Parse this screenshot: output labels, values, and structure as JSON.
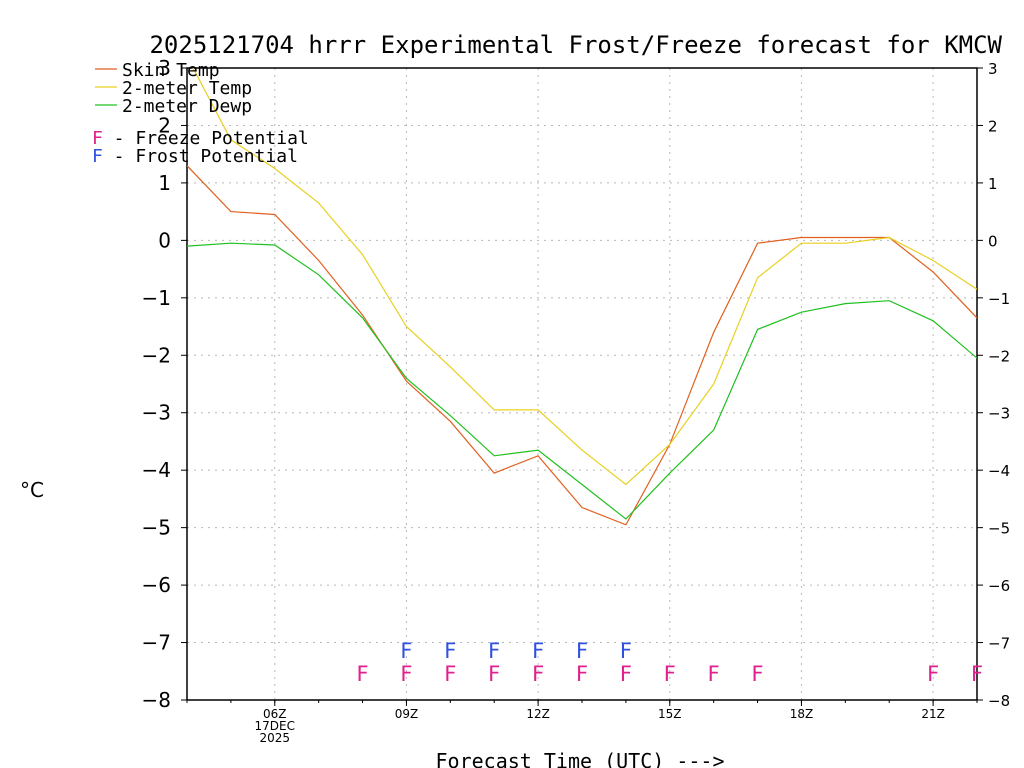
{
  "chart_data": {
    "type": "line",
    "title": "2025121704 hrrr Experimental Frost/Freeze forecast for KMCW",
    "ylabel": "°C",
    "xlabel": "Forecast Time (UTC) --->",
    "ylim": [
      -8,
      3
    ],
    "xlim": [
      4,
      22
    ],
    "yticks": [
      3,
      2,
      1,
      0,
      -1,
      -2,
      -3,
      -4,
      -5,
      -6,
      -7,
      -8
    ],
    "xticks": [
      {
        "hour": 6,
        "label": "06Z",
        "sublabels": [
          "17DEC",
          "2025"
        ]
      },
      {
        "hour": 9,
        "label": "09Z",
        "sublabels": []
      },
      {
        "hour": 12,
        "label": "12Z",
        "sublabels": []
      },
      {
        "hour": 15,
        "label": "15Z",
        "sublabels": []
      },
      {
        "hour": 18,
        "label": "18Z",
        "sublabels": []
      },
      {
        "hour": 21,
        "label": "21Z",
        "sublabels": []
      }
    ],
    "x": [
      4,
      5,
      6,
      7,
      8,
      9,
      10,
      11,
      12,
      13,
      14,
      15,
      16,
      17,
      18,
      19,
      20,
      21,
      22
    ],
    "series": [
      {
        "name": "Skin Temp",
        "color": "#e06020",
        "values": [
          1.3,
          0.5,
          0.45,
          -0.35,
          -1.3,
          -2.45,
          -3.15,
          -4.05,
          -3.75,
          -4.65,
          -4.95,
          -3.55,
          -1.6,
          -0.05,
          0.05,
          0.05,
          0.05,
          -0.55,
          -1.35
        ]
      },
      {
        "name": "2-meter Temp",
        "color": "#e8d020",
        "values": [
          3.2,
          1.75,
          1.25,
          0.65,
          -0.25,
          -1.5,
          -2.2,
          -2.95,
          -2.95,
          -3.65,
          -4.25,
          -3.55,
          -2.5,
          -0.65,
          -0.05,
          -0.05,
          0.05,
          -0.35,
          -0.85
        ]
      },
      {
        "name": "2-meter Dewp",
        "color": "#20c020",
        "values": [
          -0.1,
          -0.05,
          -0.08,
          -0.6,
          -1.35,
          -2.4,
          -3.05,
          -3.75,
          -3.65,
          -4.25,
          -4.85,
          -4.05,
          -3.3,
          -1.55,
          -1.25,
          -1.1,
          -1.05,
          -1.4,
          -2.05
        ]
      }
    ],
    "legend": {
      "series_entries": [
        "Skin Temp",
        "2-meter Temp",
        "2-meter Dewp"
      ],
      "freeze_label": "F - Freeze Potential",
      "frost_label": "F - Frost Potential",
      "freeze_color": "#e0208c",
      "frost_color": "#3050e0",
      "placement": "top-left"
    },
    "flags": {
      "letter": "F",
      "frost_hours": [
        9,
        10,
        11,
        12,
        13,
        14
      ],
      "freeze_hours": [
        8,
        9,
        10,
        11,
        12,
        13,
        14,
        15,
        16,
        17,
        21,
        22
      ]
    },
    "grid": true
  }
}
